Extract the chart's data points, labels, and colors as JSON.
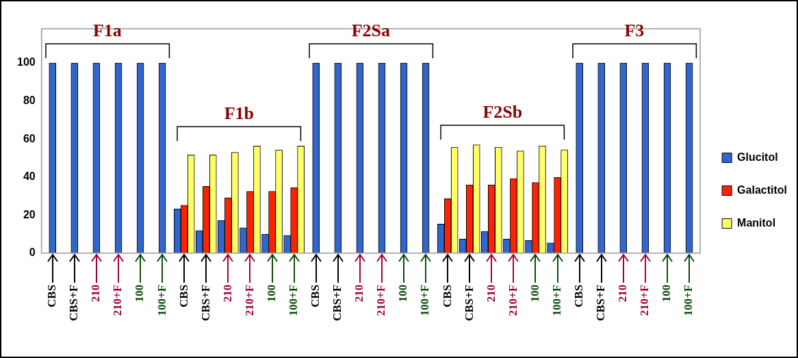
{
  "chart_data": {
    "type": "bar",
    "categories": [
      "CBS",
      "CBS+F",
      "210",
      "210+F",
      "100",
      "100+F",
      "CBS",
      "CBS+F",
      "210",
      "210+F",
      "100",
      "100+F",
      "CBS",
      "CBS+F",
      "210",
      "210+F",
      "100",
      "100+F",
      "CBS",
      "CBS+F",
      "210",
      "210+F",
      "100",
      "100+F",
      "CBS",
      "CBS+F",
      "210",
      "210+F",
      "100",
      "100+F"
    ],
    "series": [
      {
        "name": "Glucitol",
        "color": "#3366cc",
        "values": [
          100,
          100,
          100,
          100,
          100,
          100,
          23.3,
          11.9,
          17.2,
          13.3,
          10.0,
          9.4,
          100,
          100,
          100,
          100,
          100,
          100,
          15.3,
          7.4,
          11.4,
          7.4,
          6.7,
          5.4,
          100,
          100,
          100,
          100,
          100,
          100
        ]
      },
      {
        "name": "Galactitol",
        "color": "#ff2200",
        "values": [
          null,
          null,
          null,
          null,
          null,
          null,
          25.2,
          35.1,
          29.2,
          32.5,
          32.5,
          34.5,
          null,
          null,
          null,
          null,
          null,
          null,
          28.6,
          35.9,
          35.9,
          39.2,
          37.2,
          39.8,
          null,
          null,
          null,
          null,
          null,
          null
        ]
      },
      {
        "name": "Manitol",
        "color": "#ffff66",
        "values": [
          null,
          null,
          null,
          null,
          null,
          null,
          51.7,
          51.7,
          53.0,
          56.3,
          54.3,
          56.3,
          null,
          null,
          null,
          null,
          null,
          null,
          55.7,
          57.0,
          55.7,
          53.7,
          56.4,
          54.4,
          null,
          null,
          null,
          null,
          null,
          null
        ]
      }
    ],
    "ylim": [
      0,
      118
    ],
    "yticks": [
      0,
      20,
      40,
      60,
      80,
      100
    ],
    "grid": false,
    "legend": "right",
    "annotations": [
      "F1a",
      "F1b",
      "F2Sa",
      "F2Sb",
      "F3"
    ]
  }
}
